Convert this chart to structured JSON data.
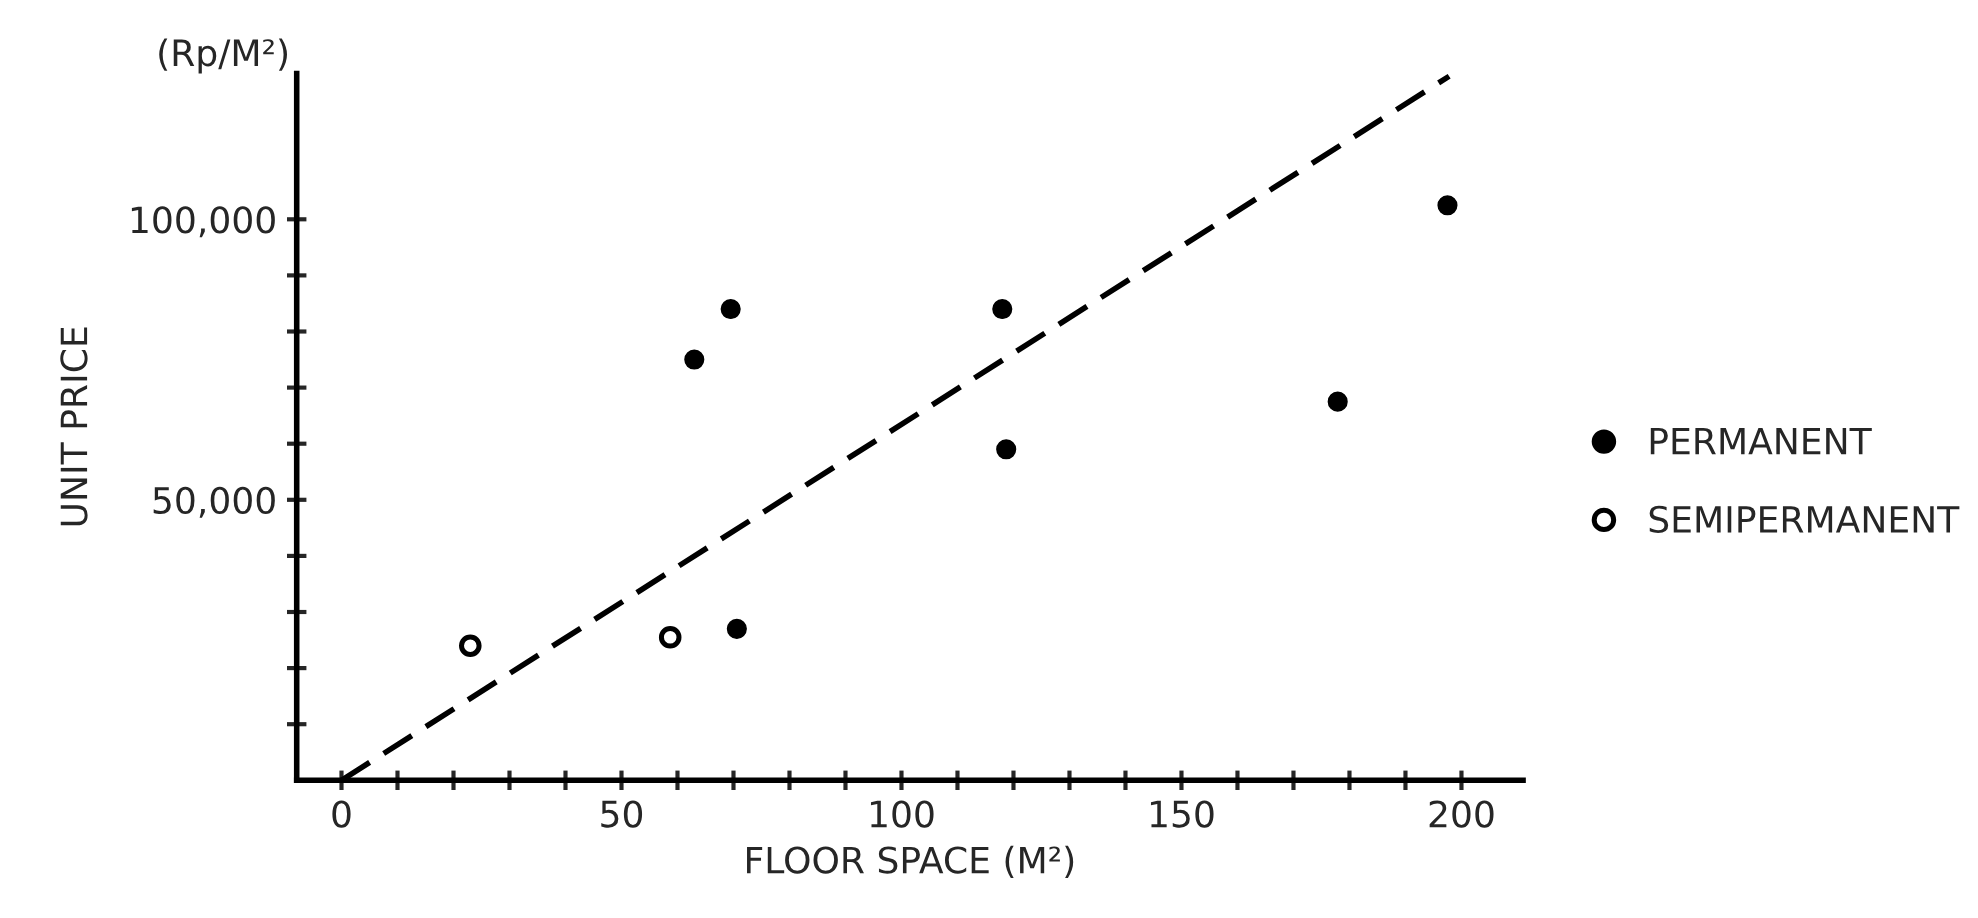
{
  "chart_data": {
    "type": "scatter",
    "xlabel": "FLOOR SPACE (M²)",
    "ylabel": "UNIT PRICE",
    "annotations": [
      "(Rp/M²)"
    ],
    "series": [
      {
        "name": "PERMANENT",
        "color": "#000000",
        "marker": "circle",
        "x": [
          63,
          69.5,
          70.6,
          118,
          118.7,
          177.9,
          197.5
        ],
        "values": [
          75000,
          84000,
          27000,
          84000,
          59000,
          67500,
          102500
        ]
      },
      {
        "name": "SEMIPERMANENT",
        "color": "#000000",
        "marker": "open circle",
        "x": [
          23,
          58.7
        ],
        "values": [
          24000,
          25500
        ]
      },
      {
        "type": "line",
        "color": "#000000",
        "line_style": "dashed",
        "marker": "none",
        "x": [
          0,
          197.8
        ],
        "values": [
          0,
          125500
        ]
      }
    ],
    "xlim": [
      -8,
      211
    ],
    "ylim": [
      0,
      126000
    ],
    "xticks": [
      0,
      {
        "value": 10,
        "label": null
      },
      {
        "value": 20,
        "label": null
      },
      {
        "value": 30,
        "label": null
      },
      {
        "value": 40,
        "label": null
      },
      50,
      {
        "value": 60,
        "label": null
      },
      {
        "value": 70,
        "label": null
      },
      {
        "value": 80,
        "label": null
      },
      {
        "value": 90,
        "label": null
      },
      100,
      {
        "value": 110,
        "label": null
      },
      {
        "value": 120,
        "label": null
      },
      {
        "value": 130,
        "label": null
      },
      {
        "value": 140,
        "label": null
      },
      150,
      {
        "value": 160,
        "label": null
      },
      {
        "value": 170,
        "label": null
      },
      {
        "value": 180,
        "label": null
      },
      {
        "value": 190,
        "label": null
      },
      200
    ],
    "yticks": [
      {
        "value": 10000,
        "label": null
      },
      {
        "value": 20000,
        "label": null
      },
      {
        "value": 30000,
        "label": null
      },
      {
        "value": 40000,
        "label": null
      },
      {
        "value": 50000,
        "label": "50,000"
      },
      {
        "value": 60000,
        "label": null
      },
      {
        "value": 70000,
        "label": null
      },
      {
        "value": 80000,
        "label": null
      },
      {
        "value": 90000,
        "label": null
      },
      {
        "value": 100000,
        "label": "100,000"
      }
    ],
    "grid": false,
    "legend": "right"
  }
}
